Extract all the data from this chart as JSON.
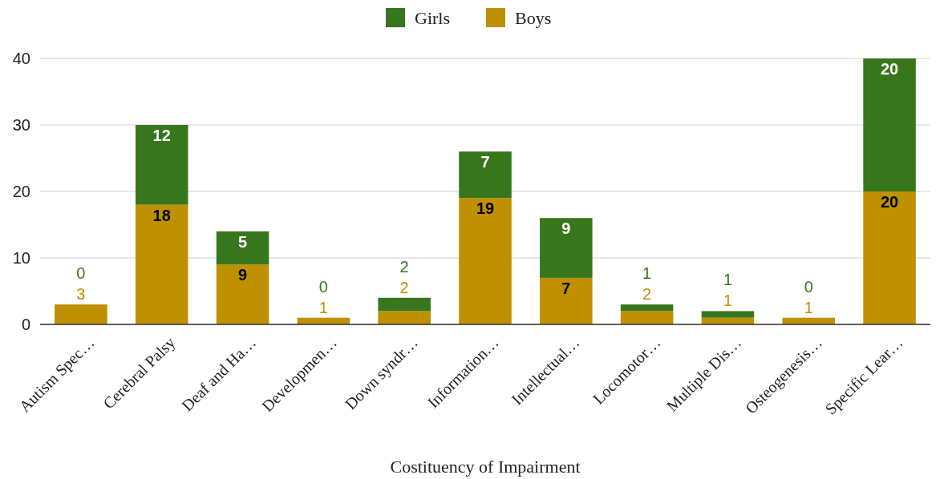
{
  "chart_data": {
    "type": "bar",
    "stacked": true,
    "xlabel": "Costituency of Impairment",
    "categories": [
      "Autism Spec…",
      "Cerebral Palsy",
      "Deaf and Ha…",
      "Developmen…",
      "Down syndr…",
      "Information…",
      "Intellectual…",
      "Locomotor…",
      "Multiple Dis…",
      "Osteogenesis…",
      "Specific Lear…"
    ],
    "series": [
      {
        "name": "Boys",
        "color": "#bf9000",
        "values": [
          3,
          18,
          9,
          1,
          2,
          19,
          7,
          2,
          1,
          1,
          20
        ]
      },
      {
        "name": "Girls",
        "color": "#38761d",
        "values": [
          0,
          12,
          5,
          0,
          2,
          7,
          9,
          1,
          1,
          0,
          20
        ]
      }
    ],
    "ylim": [
      0,
      40
    ],
    "yticks": [
      0,
      10,
      20,
      30,
      40
    ],
    "grid": "y",
    "legend": "top",
    "data_labels": true
  }
}
